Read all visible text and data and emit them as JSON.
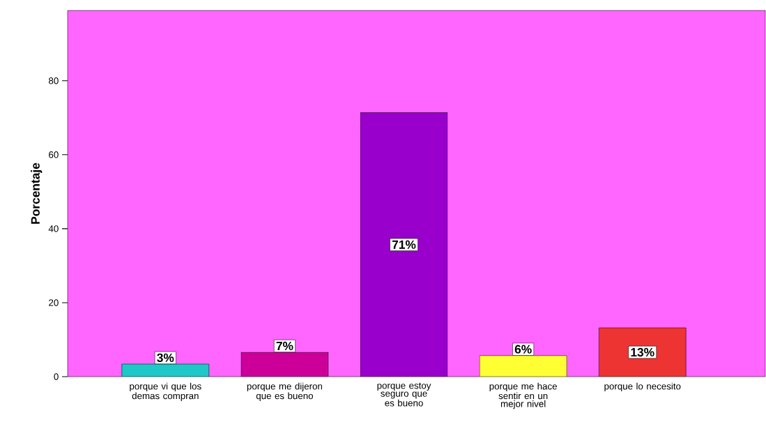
{
  "chart_data": {
    "type": "bar",
    "ylabel": "Porcentaje",
    "categories": [
      "porque vi que los demas compran",
      "porque me dijeron que es bueno",
      "porque estoy seguro que es bueno",
      "porque me hace sentir en un mejor nivel",
      "porque lo necesito"
    ],
    "values": [
      3.4,
      6.6,
      71.4,
      5.7,
      13.2
    ],
    "colors": [
      "#1fc8c8",
      "#cc0099",
      "#9900cc",
      "#ffff33",
      "#ee3333"
    ],
    "value_labels": [
      "3%",
      "7%",
      "71%",
      "6%",
      "13%"
    ],
    "ylim": [
      0,
      99
    ],
    "yticks": [
      0,
      20,
      40,
      60,
      80
    ]
  }
}
